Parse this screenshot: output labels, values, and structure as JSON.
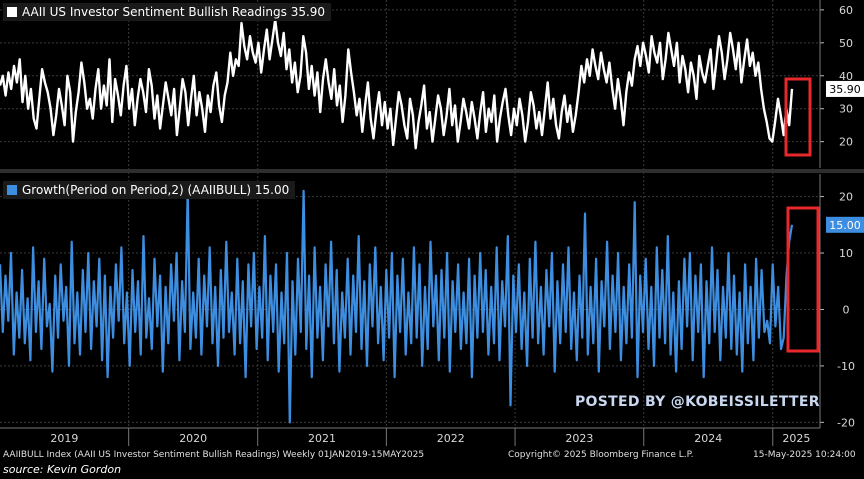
{
  "chart_data": [
    {
      "type": "line",
      "title": "AAII US Investor Sentiment Bullish Readings",
      "last_value": "35.90",
      "color": "#ffffff",
      "ylim": [
        12,
        63
      ],
      "yticks": [
        "20",
        "30",
        "40",
        "50",
        "60"
      ],
      "series": [
        {
          "name": "AAII US Investor Sentiment Bullish Readings",
          "values": [
            37,
            40,
            34,
            41,
            36,
            43,
            38,
            45,
            32,
            40,
            30,
            36,
            27,
            24,
            33,
            42,
            38,
            35,
            30,
            22,
            28,
            36,
            31,
            25,
            40,
            35,
            20,
            29,
            35,
            44,
            38,
            30,
            33,
            27,
            36,
            42,
            30,
            37,
            31,
            45,
            26,
            39,
            34,
            28,
            37,
            43,
            30,
            36,
            25,
            33,
            39,
            35,
            29,
            42,
            37,
            27,
            34,
            24,
            31,
            38,
            33,
            28,
            36,
            22,
            30,
            39,
            35,
            25,
            33,
            40,
            28,
            35,
            30,
            23,
            34,
            29,
            37,
            41,
            31,
            26,
            34,
            38,
            47,
            40,
            45,
            43,
            56,
            49,
            45,
            52,
            47,
            44,
            50,
            41,
            48,
            54,
            45,
            51,
            57,
            50,
            46,
            53,
            42,
            48,
            38,
            44,
            35,
            40,
            52,
            47,
            36,
            43,
            34,
            41,
            29,
            39,
            45,
            38,
            33,
            42,
            31,
            37,
            26,
            34,
            48,
            41,
            35,
            28,
            33,
            23,
            31,
            38,
            27,
            21,
            29,
            35,
            25,
            32,
            24,
            30,
            19,
            27,
            35,
            31,
            25,
            21,
            33,
            28,
            18,
            26,
            31,
            37,
            24,
            29,
            20,
            27,
            34,
            30,
            22,
            28,
            36,
            25,
            31,
            20,
            26,
            33,
            29,
            24,
            32,
            27,
            21,
            29,
            35,
            23,
            30,
            26,
            34,
            20,
            27,
            32,
            36,
            28,
            22,
            30,
            25,
            33,
            28,
            20,
            26,
            35,
            31,
            24,
            29,
            22,
            30,
            38,
            27,
            33,
            25,
            21,
            29,
            34,
            26,
            31,
            23,
            28,
            35,
            43,
            38,
            45,
            40,
            48,
            43,
            39,
            47,
            42,
            38,
            44,
            36,
            30,
            39,
            33,
            25,
            35,
            41,
            37,
            45,
            49,
            43,
            50,
            46,
            41,
            52,
            47,
            44,
            50,
            39,
            45,
            53,
            48,
            43,
            50,
            38,
            46,
            42,
            35,
            44,
            40,
            33,
            46,
            41,
            38,
            43,
            48,
            36,
            44,
            52,
            47,
            39,
            45,
            53,
            48,
            42,
            50,
            38,
            45,
            51,
            43,
            47,
            40,
            44,
            36,
            30,
            26,
            21,
            20,
            26,
            33,
            28,
            22,
            30,
            25,
            36
          ]
        }
      ]
    },
    {
      "type": "bar",
      "title": "Growth(Period on Period,2) (AAIIBULL)",
      "last_value": "15.00",
      "color": "#3d8ee0",
      "ylim": [
        -21,
        24
      ],
      "yticks": [
        "-20",
        "-10",
        "0",
        "10",
        "20"
      ],
      "series": [
        {
          "name": "Growth(Period on Period,2) (AAIIBULL)",
          "values": [
            8,
            -4,
            6,
            -2,
            10,
            -8,
            3,
            -5,
            7,
            -6,
            2,
            -9,
            11,
            -4,
            5,
            -7,
            9,
            -3,
            1,
            -11,
            6,
            -5,
            8,
            -2,
            4,
            -10,
            12,
            -6,
            3,
            -8,
            7,
            -4,
            10,
            -7,
            5,
            -3,
            9,
            -9,
            6,
            -12,
            4,
            -5,
            8,
            -2,
            11,
            -6,
            3,
            -10,
            7,
            -4,
            5,
            -8,
            13,
            -5,
            2,
            -7,
            9,
            -3,
            6,
            -11,
            4,
            -6,
            8,
            -2,
            10,
            -9,
            5,
            -4,
            21,
            -7,
            3,
            -5,
            9,
            -8,
            6,
            -3,
            11,
            -6,
            4,
            -10,
            7,
            -5,
            12,
            -4,
            3,
            -8,
            9,
            -6,
            5,
            -12,
            8,
            -3,
            10,
            -7,
            4,
            -5,
            13,
            -9,
            6,
            -4,
            8,
            -11,
            3,
            -6,
            10,
            -20,
            5,
            -8,
            9,
            -4,
            21,
            -7,
            6,
            -12,
            11,
            -5,
            4,
            -9,
            8,
            -3,
            12,
            -6,
            7,
            -11,
            3,
            -5,
            9,
            -8,
            6,
            -4,
            13,
            -7,
            5,
            -10,
            8,
            -3,
            11,
            -6,
            4,
            -9,
            7,
            -5,
            10,
            -12,
            6,
            -4,
            9,
            -8,
            3,
            -6,
            11,
            -5,
            8,
            -10,
            4,
            -7,
            12,
            -3,
            6,
            -9,
            7,
            -5,
            10,
            -11,
            5,
            -4,
            8,
            -7,
            3,
            -6,
            9,
            -12,
            6,
            -5,
            10,
            -4,
            7,
            -8,
            4,
            -6,
            11,
            -9,
            5,
            -3,
            13,
            -17,
            6,
            -4,
            8,
            -7,
            3,
            -10,
            9,
            -5,
            12,
            -6,
            4,
            -8,
            7,
            -3,
            10,
            -11,
            5,
            -6,
            8,
            -4,
            11,
            -7,
            3,
            -9,
            6,
            -5,
            17,
            -8,
            4,
            -6,
            9,
            -11,
            5,
            -3,
            12,
            -7,
            6,
            -4,
            10,
            -9,
            4,
            -6,
            8,
            -5,
            19,
            -12,
            6,
            -4,
            9,
            -7,
            4,
            -10,
            11,
            -5,
            7,
            -6,
            13,
            -8,
            3,
            -11,
            5,
            -7,
            9,
            -3,
            10,
            -9,
            6,
            -4,
            8,
            -12,
            5,
            -6,
            11,
            -4,
            7,
            -9,
            4,
            -5,
            10,
            -7,
            6,
            -8,
            3,
            -11,
            8,
            -6,
            4,
            -9,
            9,
            -5,
            7,
            -4,
            -2,
            -6,
            8,
            -3,
            4,
            -7,
            -5,
            6,
            12,
            15
          ]
        }
      ]
    }
  ],
  "x_axis": {
    "type": "date",
    "start": "2019-01-01",
    "end": "2025-05-15",
    "labels": [
      "2019",
      "2020",
      "2021",
      "2022",
      "2023",
      "2024",
      "2025"
    ]
  },
  "footer": {
    "index_label": "AAIIBULL Index (AAII US Investor Sentiment Bullish Readings)  Weekly 01JAN2019-15MAY2025",
    "copyright": "Copyright© 2025 Bloomberg Finance L.P.",
    "timestamp": "15-May-2025 10:24:00",
    "source": "source: Kevin Gordon"
  },
  "watermark": "POSTED BY @KOBEISSILETTER",
  "highlight_color": "#e8282b"
}
